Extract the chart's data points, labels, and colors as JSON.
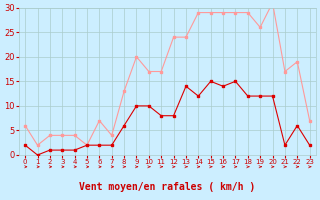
{
  "xlabel": "Vent moyen/en rafales ( km/h )",
  "hours": [
    0,
    1,
    2,
    3,
    4,
    5,
    6,
    7,
    8,
    9,
    10,
    11,
    12,
    13,
    14,
    15,
    16,
    17,
    18,
    19,
    20,
    21,
    22,
    23
  ],
  "vent_moyen": [
    2,
    0,
    1,
    1,
    1,
    2,
    2,
    2,
    6,
    10,
    10,
    8,
    8,
    14,
    12,
    15,
    14,
    15,
    12,
    12,
    12,
    2,
    6,
    2
  ],
  "rafales": [
    6,
    2,
    4,
    4,
    4,
    2,
    7,
    4,
    13,
    20,
    17,
    17,
    24,
    24,
    29,
    29,
    29,
    29,
    29,
    26,
    31,
    17,
    19,
    7
  ],
  "ylim": [
    0,
    30
  ],
  "yticks": [
    0,
    5,
    10,
    15,
    20,
    25,
    30
  ],
  "bg_color": "#cceeff",
  "grid_color": "#aacccc",
  "line_color_moyen": "#dd0000",
  "line_color_rafales": "#ff9999",
  "arrow_color": "#cc0000",
  "xlabel_color": "#cc0000",
  "xlabel_fontsize": 7,
  "tick_color": "#cc0000",
  "ytick_fontsize": 6,
  "xtick_fontsize": 5
}
